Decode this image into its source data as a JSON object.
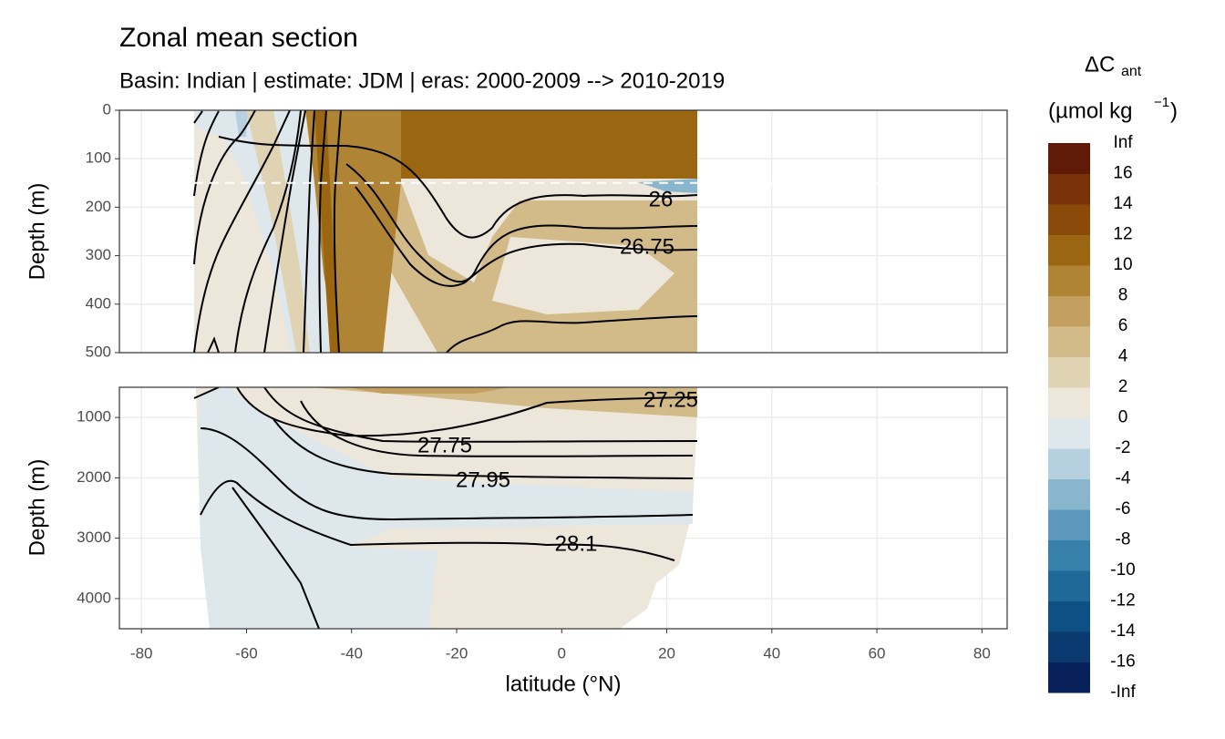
{
  "chart_data": {
    "type": "contour",
    "title": "Zonal mean section",
    "subtitle": "Basin: Indian | estimate: JDM  | eras: 2000-2009 --> 2010-2019",
    "xlabel": "latitude (°N)",
    "xlim": [
      -84.2,
      84.8
    ],
    "xticks": [
      -80,
      -60,
      -40,
      -20,
      0,
      20,
      40,
      60,
      80
    ],
    "grid": true,
    "panels": [
      {
        "ylabel": "Depth (m)",
        "ylim": [
          500,
          0
        ],
        "yticks": [
          0,
          100,
          200,
          300,
          400,
          500
        ],
        "reference_depth": 150,
        "contour_labels": [
          "26",
          "26.75"
        ]
      },
      {
        "ylabel": "Depth (m)",
        "ylim": [
          4500,
          500
        ],
        "yticks": [
          1000,
          2000,
          3000,
          4000
        ],
        "contour_labels": [
          "27.25",
          "27.75",
          "27.95",
          "28.1"
        ]
      }
    ],
    "legend": {
      "title_symbol": "ΔC",
      "title_subscript": "ant",
      "title_unit": "(µmol kg",
      "title_unit_exponent": "−1",
      "title_unit_close": ")",
      "breaks": [
        "-Inf",
        -16,
        -14,
        -12,
        -10,
        -8,
        -6,
        -4,
        -2,
        0,
        2,
        4,
        6,
        8,
        10,
        12,
        14,
        16,
        "Inf"
      ],
      "colors": [
        "#08215a",
        "#0b3a70",
        "#0e4f84",
        "#1f6898",
        "#3680aa",
        "#5c98bb",
        "#8ab6cd",
        "#b7d0e0",
        "#dde7ec",
        "#ede6da",
        "#e0d3b3",
        "#d2bb88",
        "#c4a060",
        "#b08435",
        "#9a6612",
        "#8a4b0a",
        "#7a3309",
        "#5f1b07"
      ]
    }
  }
}
